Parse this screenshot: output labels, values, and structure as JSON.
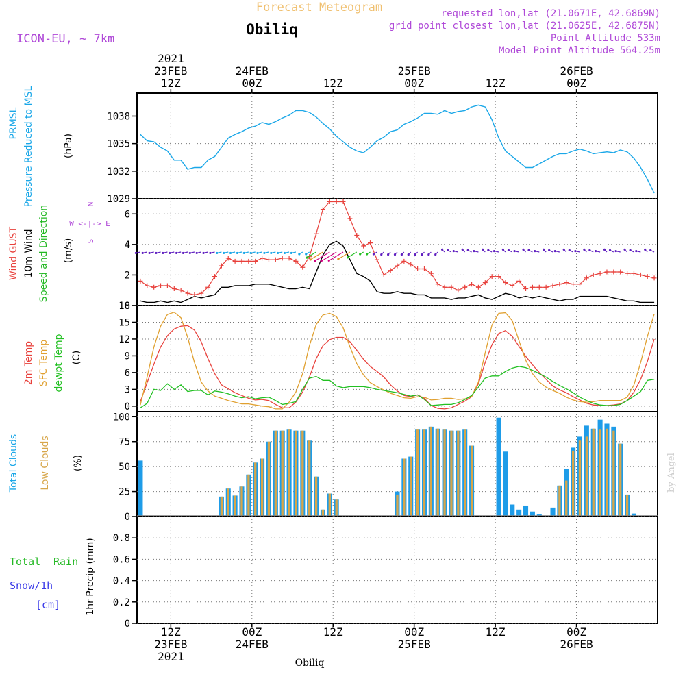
{
  "header": {
    "title": "Forecast Meteogram",
    "location": "Obiliq",
    "model": "ICON-EU, ~ 7km",
    "requested": "requested lon,lat (21.0671E, 42.6869N)",
    "grid_point": "grid point closest lon,lat (21.0625E, 42.6875N)",
    "point_altitude": "Point Altitude 533m",
    "model_altitude": "Model Point Altitude 564.25m"
  },
  "time_axis": {
    "top": [
      {
        "t": 12,
        "lines": [
          "2021",
          "23FEB",
          "12Z"
        ]
      },
      {
        "t": 24,
        "lines": [
          "24FEB",
          "00Z"
        ]
      },
      {
        "t": 36,
        "lines": [
          "12Z"
        ]
      },
      {
        "t": 48,
        "lines": [
          "25FEB",
          "00Z"
        ]
      },
      {
        "t": 60,
        "lines": [
          "12Z"
        ]
      },
      {
        "t": 72,
        "lines": [
          "26FEB",
          "00Z"
        ]
      }
    ],
    "bottom": [
      {
        "t": 12,
        "lines": [
          "12Z",
          "23FEB",
          "2021"
        ]
      },
      {
        "t": 24,
        "lines": [
          "00Z",
          "24FEB"
        ]
      },
      {
        "t": 36,
        "lines": [
          "12Z"
        ]
      },
      {
        "t": 48,
        "lines": [
          "00Z",
          "25FEB"
        ]
      },
      {
        "t": 60,
        "lines": [
          "12Z"
        ]
      },
      {
        "t": 72,
        "lines": [
          "00Z",
          "26FEB"
        ]
      }
    ],
    "footer": "Obiliq"
  },
  "watermark": "by Angel",
  "colors": {
    "pressure": "#1aa7e8",
    "gust": "#e8413c",
    "wind": "#000000",
    "wind_dir": "#22b822",
    "temp2m": "#e8413c",
    "sfc": "#e0a030",
    "dewpt": "#22c022",
    "total_cloud": "#1e9ce8",
    "low_cloud": "#d7a64a",
    "rain": "#22b822",
    "snow": "#3a3ae8",
    "label_purple": "#b04ad8",
    "title_orange": "#f0c070"
  },
  "panels": {
    "pressure": {
      "label1": "PRMSL",
      "label2": "Pressure Reduced to MSL",
      "unit": "(hPa)",
      "ticks": [
        "1029",
        "1032",
        "1035",
        "1038"
      ]
    },
    "wind": {
      "label_gust": "Wind GUST",
      "label_wind": "10m Wind",
      "label_dir": "Speed and Direction",
      "unit": "(m/s)",
      "compass_n": "N",
      "compass_s": "S",
      "compass_row": "W <-|-> E",
      "ticks": [
        "0",
        "2",
        "4",
        "6"
      ]
    },
    "temp": {
      "label1": "2m Temp",
      "label2": "SFC Temp",
      "label3": "dewpt Temp",
      "unit": "(C)",
      "ticks": [
        "0",
        "3",
        "6",
        "9",
        "12",
        "15",
        "18"
      ]
    },
    "clouds": {
      "label1": "Total Clouds",
      "label2": "Low Clouds",
      "unit": "(%)",
      "ticks": [
        "0",
        "25",
        "50",
        "75",
        "100"
      ]
    },
    "precip": {
      "label_total": "Total",
      "label_rain": "Rain",
      "label_snow": "Snow/1h",
      "label_cm": "[cm]",
      "unit": "1hr Precip (mm)",
      "ticks": [
        "0",
        "0.2",
        "0.4",
        "0.6",
        "0.8"
      ]
    }
  },
  "chart_data": {
    "type": "line",
    "x": {
      "start": "2021-02-23 08Z",
      "step_hours": 1,
      "count": 77
    },
    "panels": [
      {
        "name": "pressure",
        "ylim": [
          1029,
          1040.5
        ],
        "unit": "hPa",
        "series": [
          {
            "name": "PRMSL",
            "type": "line",
            "values": [
              1036.0,
              1035.3,
              1035.2,
              1034.6,
              1034.2,
              1033.2,
              1033.2,
              1032.2,
              1032.4,
              1032.4,
              1033.2,
              1033.6,
              1034.6,
              1035.6,
              1036.0,
              1036.3,
              1036.7,
              1036.9,
              1037.3,
              1037.1,
              1037.4,
              1037.8,
              1038.1,
              1038.6,
              1038.6,
              1038.4,
              1037.9,
              1037.2,
              1036.6,
              1035.8,
              1035.2,
              1034.6,
              1034.2,
              1034.0,
              1034.6,
              1035.3,
              1035.7,
              1036.3,
              1036.5,
              1037.1,
              1037.4,
              1037.8,
              1038.3,
              1038.3,
              1038.2,
              1038.6,
              1038.3,
              1038.5,
              1038.6,
              1039.0,
              1039.2,
              1039.0,
              1037.6,
              1035.6,
              1034.2,
              1033.6,
              1033.0,
              1032.4,
              1032.4,
              1032.8,
              1033.2,
              1033.6,
              1033.9,
              1033.9,
              1034.2,
              1034.4,
              1034.2,
              1033.9,
              1034.0,
              1034.1,
              1034.0,
              1034.3,
              1034.1,
              1033.4,
              1032.4,
              1031.1,
              1029.6
            ]
          }
        ]
      },
      {
        "name": "wind",
        "ylim": [
          0,
          7
        ],
        "unit": "m/s",
        "series": [
          {
            "name": "Wind GUST",
            "type": "line-plus",
            "values": [
              1.6,
              1.3,
              1.2,
              1.3,
              1.3,
              1.1,
              1.0,
              0.8,
              0.7,
              0.8,
              1.2,
              1.9,
              2.6,
              3.1,
              2.9,
              2.9,
              2.9,
              2.9,
              3.1,
              3.0,
              3.0,
              3.1,
              3.1,
              2.9,
              2.5,
              3.2,
              4.7,
              6.3,
              6.8,
              6.8,
              6.8,
              5.7,
              4.6,
              3.9,
              4.1,
              3.0,
              2.0,
              2.3,
              2.6,
              2.9,
              2.7,
              2.4,
              2.4,
              2.1,
              1.4,
              1.2,
              1.2,
              1.0,
              1.2,
              1.4,
              1.2,
              1.5,
              1.9,
              1.9,
              1.5,
              1.3,
              1.6,
              1.1,
              1.2,
              1.2,
              1.2,
              1.3,
              1.4,
              1.5,
              1.4,
              1.4,
              1.8,
              2.0,
              2.1,
              2.2,
              2.2,
              2.2,
              2.1,
              2.1,
              2.0,
              1.9,
              1.8
            ]
          },
          {
            "name": "10m Wind",
            "type": "line",
            "values": [
              0.3,
              0.2,
              0.2,
              0.3,
              0.2,
              0.3,
              0.2,
              0.4,
              0.6,
              0.5,
              0.6,
              0.7,
              1.2,
              1.2,
              1.3,
              1.3,
              1.3,
              1.4,
              1.4,
              1.4,
              1.3,
              1.2,
              1.1,
              1.1,
              1.2,
              1.1,
              2.2,
              3.3,
              4.0,
              4.2,
              3.9,
              3.0,
              2.1,
              1.9,
              1.6,
              0.9,
              0.8,
              0.8,
              0.9,
              0.8,
              0.8,
              0.7,
              0.7,
              0.5,
              0.5,
              0.5,
              0.4,
              0.5,
              0.5,
              0.6,
              0.7,
              0.5,
              0.4,
              0.6,
              0.8,
              0.7,
              0.5,
              0.6,
              0.5,
              0.6,
              0.5,
              0.4,
              0.3,
              0.4,
              0.4,
              0.6,
              0.6,
              0.6,
              0.6,
              0.6,
              0.5,
              0.4,
              0.3,
              0.3,
              0.2,
              0.2,
              0.2
            ]
          }
        ],
        "direction_arrows_magnitude": 3.5
      },
      {
        "name": "temp",
        "ylim": [
          -1,
          18
        ],
        "unit": "C",
        "series": [
          {
            "name": "2m Temp",
            "type": "line",
            "values": [
              0.8,
              4.2,
              7.5,
              10.6,
              12.6,
              13.8,
              14.3,
              14.4,
              13.6,
              11.5,
              8.5,
              5.8,
              3.8,
              3.1,
              2.4,
              1.9,
              1.4,
              1.1,
              1.2,
              1.0,
              0.3,
              -0.3,
              -0.3,
              0.7,
              2.5,
              5.2,
              8.5,
              10.8,
              11.9,
              12.3,
              12.3,
              11.5,
              10.0,
              8.4,
              7.1,
              6.2,
              5.2,
              3.8,
              2.7,
              1.9,
              1.7,
              2.0,
              1.4,
              0.1,
              -0.4,
              -0.5,
              -0.3,
              0.3,
              0.9,
              1.7,
              4.0,
              7.8,
              11.0,
              13.0,
              13.5,
              12.5,
              10.7,
              8.9,
              7.4,
              6.0,
              4.8,
              3.6,
              2.9,
              2.4,
              1.7,
              1.1,
              0.5,
              0.2,
              0.1,
              0.1,
              0.2,
              0.4,
              1.0,
              2.5,
              4.8,
              8.0,
              12.0
            ]
          },
          {
            "name": "SFC Temp",
            "type": "line",
            "values": [
              0.2,
              5.2,
              10.6,
              14.3,
              16.4,
              16.8,
              15.8,
              12.3,
              7.8,
              4.3,
              2.7,
              1.8,
              1.4,
              1.0,
              0.7,
              0.4,
              0.4,
              0.2,
              0.0,
              -0.1,
              -0.5,
              -0.5,
              0.7,
              2.5,
              5.8,
              10.8,
              14.6,
              16.3,
              16.6,
              16.0,
              14.0,
              10.6,
              7.6,
              5.6,
              4.2,
              3.5,
              2.9,
              2.3,
              1.9,
              1.5,
              1.4,
              1.7,
              1.6,
              1.1,
              1.2,
              1.4,
              1.4,
              1.2,
              1.3,
              1.7,
              4.3,
              9.5,
              14.5,
              16.6,
              16.7,
              15.3,
              11.7,
              8.2,
              5.8,
              4.3,
              3.4,
              2.8,
              2.3,
              1.6,
              1.1,
              0.8,
              0.7,
              0.8,
              1.0,
              1.0,
              1.0,
              1.0,
              1.6,
              3.8,
              7.8,
              12.5,
              16.5
            ]
          },
          {
            "name": "dewpt Temp",
            "type": "line",
            "values": [
              -0.3,
              0.5,
              3.0,
              2.8,
              4.0,
              3.0,
              3.8,
              2.6,
              2.8,
              2.8,
              2.0,
              2.7,
              2.5,
              2.2,
              1.8,
              1.5,
              1.7,
              1.3,
              1.5,
              1.6,
              1.0,
              0.3,
              0.5,
              0.8,
              3.0,
              5.0,
              5.3,
              4.6,
              4.6,
              3.6,
              3.3,
              3.5,
              3.5,
              3.5,
              3.3,
              3.0,
              2.8,
              2.6,
              2.4,
              2.1,
              1.8,
              2.0,
              1.2,
              0.1,
              0.2,
              0.3,
              0.3,
              0.6,
              1.2,
              1.9,
              3.4,
              5.0,
              5.4,
              5.4,
              6.2,
              6.8,
              7.1,
              6.9,
              6.4,
              5.8,
              5.2,
              4.4,
              3.7,
              3.1,
              2.4,
              1.6,
              1.0,
              0.5,
              0.2,
              0.1,
              0.1,
              0.3,
              1.0,
              1.8,
              2.6,
              4.6,
              4.8
            ]
          }
        ]
      },
      {
        "name": "clouds",
        "ylim": [
          0,
          105
        ],
        "unit": "%",
        "series": [
          {
            "name": "Total Clouds",
            "type": "bar",
            "values": [
              56,
              0,
              0,
              0,
              0,
              0,
              0,
              0,
              0,
              0,
              0,
              0,
              20,
              28,
              21,
              30,
              42,
              54,
              58,
              75,
              86,
              86,
              87,
              86,
              86,
              76,
              40,
              7,
              23,
              17,
              0,
              0,
              0,
              0,
              0,
              0,
              0,
              0,
              25,
              58,
              60,
              87,
              87,
              90,
              88,
              87,
              86,
              86,
              87,
              71,
              0,
              0,
              0,
              99,
              65,
              12,
              7,
              11,
              5,
              2,
              0,
              9,
              31,
              48,
              69,
              80,
              91,
              88,
              97,
              93,
              90,
              73,
              22,
              3,
              0,
              0,
              0
            ]
          },
          {
            "name": "Low Clouds",
            "type": "bar",
            "values": [
              0,
              0,
              0,
              0,
              0,
              0,
              0,
              0,
              0,
              0,
              0,
              0,
              20,
              28,
              21,
              30,
              42,
              54,
              58,
              75,
              86,
              86,
              87,
              86,
              86,
              76,
              40,
              7,
              23,
              17,
              0,
              0,
              0,
              0,
              0,
              0,
              0,
              0,
              22,
              58,
              60,
              87,
              87,
              90,
              88,
              87,
              86,
              86,
              87,
              71,
              0,
              0,
              0,
              0,
              0,
              0,
              0,
              0,
              0,
              0,
              0,
              0,
              31,
              36,
              66,
              76,
              80,
              88,
              87,
              88,
              86,
              73,
              22,
              0,
              0,
              0,
              0
            ]
          }
        ]
      },
      {
        "name": "precip",
        "ylim": [
          0,
          1.0
        ],
        "unit": "mm",
        "series": [
          {
            "name": "Total Rain",
            "type": "bar",
            "values": []
          }
        ]
      }
    ]
  }
}
